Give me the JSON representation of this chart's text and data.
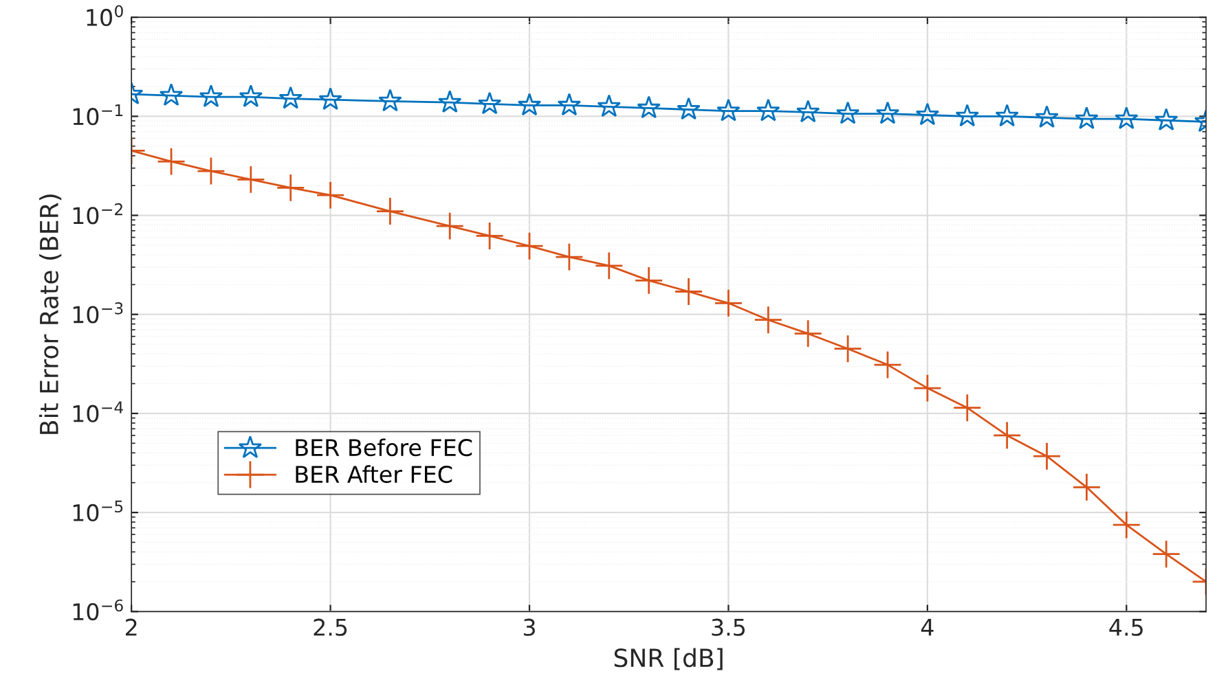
{
  "chart_data": {
    "type": "line",
    "xlabel": "SNR [dB]",
    "ylabel": "Bit Error Rate (BER)",
    "x": [
      2.0,
      2.1,
      2.2,
      2.3,
      2.4,
      2.5,
      2.65,
      2.8,
      2.9,
      3.0,
      3.1,
      3.2,
      3.3,
      3.4,
      3.5,
      3.6,
      3.7,
      3.8,
      3.9,
      4.0,
      4.1,
      4.2,
      4.3,
      4.4,
      4.5,
      4.6,
      4.7
    ],
    "series": [
      {
        "name": "BER Before FEC",
        "color": "#0072bd",
        "marker": "star",
        "values": [
          0.167,
          0.162,
          0.157,
          0.157,
          0.151,
          0.147,
          0.142,
          0.138,
          0.133,
          0.129,
          0.129,
          0.125,
          0.121,
          0.117,
          0.113,
          0.113,
          0.11,
          0.106,
          0.106,
          0.103,
          0.1,
          0.1,
          0.097,
          0.094,
          0.094,
          0.091,
          0.088
        ]
      },
      {
        "name": "BER After FEC",
        "color": "#d95319",
        "marker": "cross",
        "values": [
          0.045,
          0.035,
          0.028,
          0.023,
          0.019,
          0.016,
          0.011,
          0.0078,
          0.0062,
          0.0049,
          0.0038,
          0.0031,
          0.0022,
          0.0017,
          0.0013,
          0.00088,
          0.00064,
          0.00045,
          0.00031,
          0.00018,
          0.000114,
          6e-05,
          3.7e-05,
          1.8e-05,
          7.5e-06,
          3.8e-06,
          2e-06
        ]
      }
    ],
    "log": "y",
    "xlim": [
      2,
      4.7
    ],
    "xticks": [
      2,
      2.5,
      3,
      3.5,
      4,
      4.5
    ],
    "ylim": [
      1e-06,
      1
    ],
    "yticks": [
      {
        "value": 1e-06,
        "label": "10$^{−6}$"
      },
      {
        "value": 1e-05,
        "label": "10$^{−5}$"
      },
      {
        "value": 0.0001,
        "label": "10$^{−4}$"
      },
      {
        "value": 0.001,
        "label": "10$^{−3}$"
      },
      {
        "value": 0.01,
        "label": "10$^{−2}$"
      },
      {
        "value": 0.1,
        "label": "10$^{−1}$"
      },
      {
        "value": 1,
        "label": "10$^{0}$"
      }
    ],
    "grid": true,
    "legend": "left",
    "line_style": "solid"
  }
}
